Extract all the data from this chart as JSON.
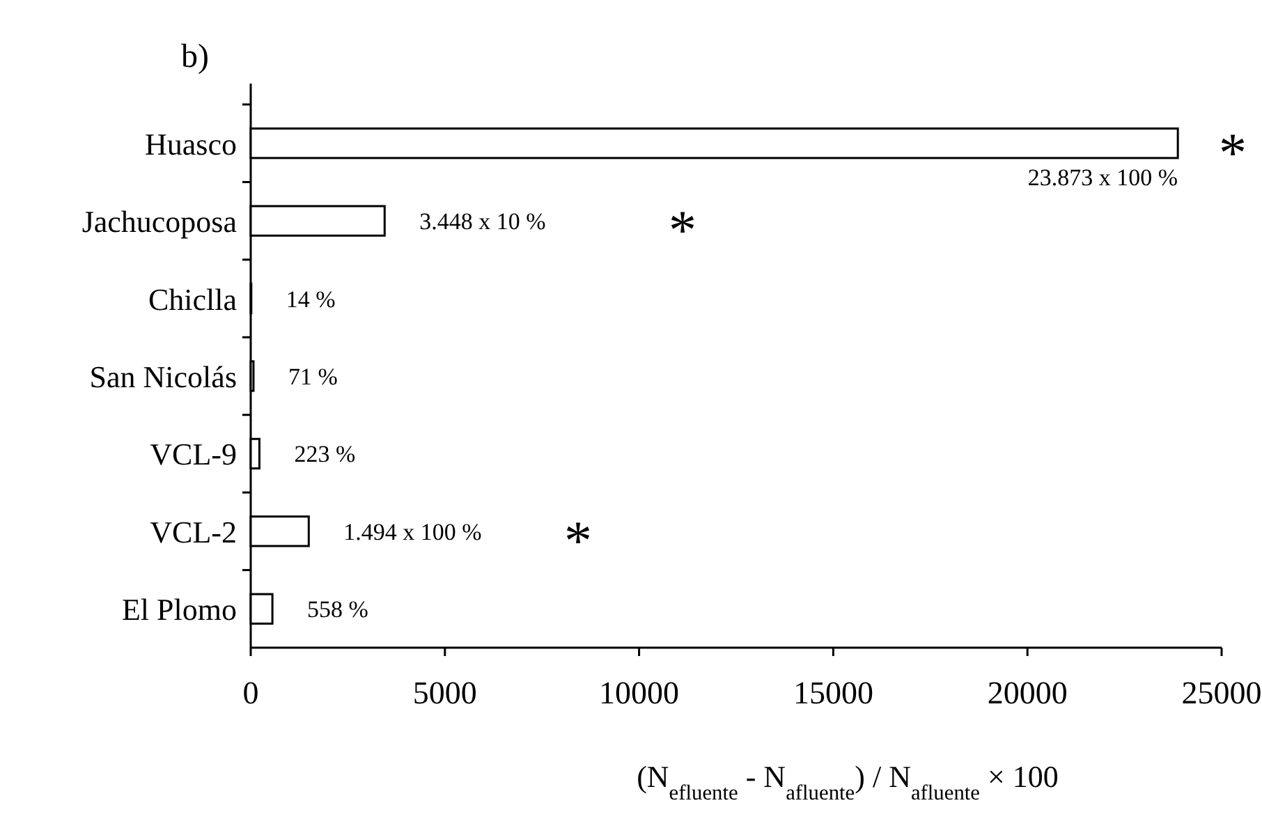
{
  "chart_data": {
    "type": "bar",
    "orientation": "horizontal",
    "title": "b)",
    "categories": [
      "Huasco",
      "Jachucoposa",
      "Chiclla",
      "San Nicolás",
      "VCL-9",
      "VCL-2",
      "El Plomo"
    ],
    "values": [
      23873,
      3448,
      14,
      71,
      223,
      1494,
      558
    ],
    "value_labels": [
      "23.873 x 100 %",
      "3.448 x 10 %",
      "14 %",
      "71 %",
      "223 %",
      "1.494 x 100 %",
      "558 %"
    ],
    "color": "#ffffff",
    "xlim": [
      0,
      25000
    ],
    "xticks": [
      0,
      5000,
      10000,
      15000,
      20000,
      25000
    ],
    "xlabel": "(N$_{efluente}$ - N$_{afluente}$) / N$_{afluente}$ × 100",
    "annotations": [
      "*",
      "*",
      "*"
    ],
    "grid": false
  }
}
